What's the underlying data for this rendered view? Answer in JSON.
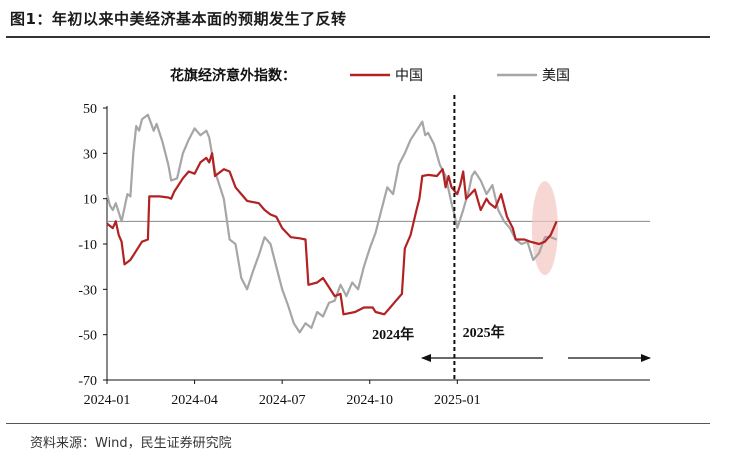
{
  "title": "图1：年初以来中美经济基本面的预期发生了反转",
  "source": "资料来源：Wind，民生证券研究院",
  "chart_data": {
    "type": "line",
    "legend_title": "花旗经济意外指数：",
    "legend_position": "top-center",
    "ylim": [
      -70,
      50
    ],
    "yticks": [
      50,
      30,
      10,
      -10,
      -30,
      -50,
      -70
    ],
    "ytick_labels": [
      "50",
      "30",
      "10",
      "-10",
      "-30",
      "-50",
      "-70"
    ],
    "xticks": [
      "2024-01",
      "2024-04",
      "2024-07",
      "2024-10",
      "2025-01"
    ],
    "x_domain": [
      0,
      18.6
    ],
    "xtick_positions": [
      0,
      3,
      6,
      9,
      12
    ],
    "divider_x": 11.9,
    "zero_line": 0,
    "annotations": [
      {
        "text": "2024年",
        "x": 9.8,
        "y": -52
      },
      {
        "text": "2025年",
        "x": 12.9,
        "y": -51
      }
    ],
    "series": [
      {
        "name": "中国",
        "color": "#b22222",
        "points": [
          [
            0.0,
            -1
          ],
          [
            0.2,
            -3
          ],
          [
            0.3,
            0
          ],
          [
            0.4,
            -6
          ],
          [
            0.5,
            -9
          ],
          [
            0.6,
            -19
          ],
          [
            0.8,
            -17
          ],
          [
            1.0,
            -13
          ],
          [
            1.2,
            -9
          ],
          [
            1.4,
            -8
          ],
          [
            1.45,
            11
          ],
          [
            1.8,
            11
          ],
          [
            2.1,
            10.5
          ],
          [
            2.2,
            10
          ],
          [
            2.3,
            13
          ],
          [
            2.6,
            19
          ],
          [
            2.8,
            22
          ],
          [
            3.0,
            21
          ],
          [
            3.2,
            26
          ],
          [
            3.4,
            28
          ],
          [
            3.5,
            26
          ],
          [
            3.6,
            30
          ],
          [
            3.7,
            20
          ],
          [
            4.0,
            23
          ],
          [
            4.2,
            22
          ],
          [
            4.4,
            15
          ],
          [
            4.6,
            12
          ],
          [
            4.8,
            9
          ],
          [
            5.2,
            8
          ],
          [
            5.4,
            5
          ],
          [
            5.6,
            3
          ],
          [
            5.8,
            2
          ],
          [
            6.0,
            -3
          ],
          [
            6.3,
            -7
          ],
          [
            6.6,
            -7.5
          ],
          [
            6.8,
            -8
          ],
          [
            6.9,
            -28
          ],
          [
            7.2,
            -27
          ],
          [
            7.4,
            -25
          ],
          [
            7.6,
            -29
          ],
          [
            7.8,
            -33
          ],
          [
            8.0,
            -32
          ],
          [
            8.1,
            -41
          ],
          [
            8.5,
            -40
          ],
          [
            8.8,
            -38
          ],
          [
            9.1,
            -38
          ],
          [
            9.2,
            -40
          ],
          [
            9.5,
            -41
          ],
          [
            9.7,
            -38
          ],
          [
            9.9,
            -35
          ],
          [
            10.1,
            -32
          ],
          [
            10.2,
            -12
          ],
          [
            10.4,
            -6
          ],
          [
            10.6,
            5
          ],
          [
            10.7,
            10
          ],
          [
            10.8,
            20
          ],
          [
            11.0,
            20.5
          ],
          [
            11.3,
            20
          ],
          [
            11.5,
            23
          ],
          [
            11.6,
            15
          ],
          [
            11.7,
            20
          ],
          [
            11.8,
            15
          ],
          [
            12.0,
            12
          ],
          [
            12.1,
            16
          ],
          [
            12.2,
            22
          ],
          [
            12.3,
            10
          ],
          [
            12.6,
            14
          ],
          [
            12.8,
            5
          ],
          [
            13.0,
            10
          ],
          [
            13.1,
            8
          ],
          [
            13.3,
            6
          ],
          [
            13.5,
            12
          ],
          [
            13.7,
            2
          ],
          [
            13.9,
            -3
          ],
          [
            14.0,
            -8
          ],
          [
            14.3,
            -8
          ],
          [
            14.5,
            -9
          ],
          [
            14.8,
            -10
          ],
          [
            15.0,
            -9
          ],
          [
            15.2,
            -6
          ],
          [
            15.4,
            0
          ]
        ]
      },
      {
        "name": "美国",
        "color": "#a6a6a6",
        "points": [
          [
            0.0,
            12
          ],
          [
            0.1,
            7
          ],
          [
            0.2,
            5
          ],
          [
            0.3,
            8
          ],
          [
            0.4,
            4
          ],
          [
            0.5,
            0
          ],
          [
            0.6,
            6
          ],
          [
            0.7,
            12
          ],
          [
            0.8,
            11
          ],
          [
            0.9,
            30
          ],
          [
            1.0,
            42
          ],
          [
            1.1,
            40
          ],
          [
            1.2,
            45
          ],
          [
            1.4,
            47
          ],
          [
            1.6,
            40
          ],
          [
            1.7,
            43
          ],
          [
            1.9,
            35
          ],
          [
            2.1,
            25
          ],
          [
            2.2,
            18
          ],
          [
            2.4,
            19
          ],
          [
            2.6,
            30
          ],
          [
            2.8,
            36
          ],
          [
            3.0,
            41
          ],
          [
            3.2,
            38
          ],
          [
            3.4,
            40
          ],
          [
            3.5,
            37
          ],
          [
            3.7,
            22
          ],
          [
            3.8,
            18
          ],
          [
            4.0,
            10
          ],
          [
            4.2,
            -8
          ],
          [
            4.4,
            -10
          ],
          [
            4.6,
            -25
          ],
          [
            4.8,
            -30
          ],
          [
            5.0,
            -22
          ],
          [
            5.2,
            -15
          ],
          [
            5.4,
            -7
          ],
          [
            5.6,
            -10
          ],
          [
            5.8,
            -20
          ],
          [
            6.0,
            -30
          ],
          [
            6.2,
            -37
          ],
          [
            6.4,
            -45
          ],
          [
            6.6,
            -49
          ],
          [
            6.8,
            -45
          ],
          [
            7.0,
            -47
          ],
          [
            7.2,
            -40
          ],
          [
            7.4,
            -42
          ],
          [
            7.6,
            -36
          ],
          [
            7.8,
            -35
          ],
          [
            8.0,
            -28
          ],
          [
            8.2,
            -33
          ],
          [
            8.4,
            -27
          ],
          [
            8.6,
            -30
          ],
          [
            8.8,
            -20
          ],
          [
            9.0,
            -12
          ],
          [
            9.2,
            -5
          ],
          [
            9.4,
            5
          ],
          [
            9.6,
            15
          ],
          [
            9.8,
            12
          ],
          [
            10.0,
            25
          ],
          [
            10.2,
            30
          ],
          [
            10.4,
            36
          ],
          [
            10.6,
            40
          ],
          [
            10.8,
            44
          ],
          [
            10.9,
            38
          ],
          [
            11.0,
            39
          ],
          [
            11.2,
            34
          ],
          [
            11.4,
            25
          ],
          [
            11.6,
            20
          ],
          [
            11.8,
            8
          ],
          [
            11.9,
            3
          ],
          [
            12.0,
            -3
          ],
          [
            12.2,
            5
          ],
          [
            12.4,
            14
          ],
          [
            12.5,
            20
          ],
          [
            12.6,
            22
          ],
          [
            12.8,
            18
          ],
          [
            13.0,
            12
          ],
          [
            13.2,
            16
          ],
          [
            13.4,
            5
          ],
          [
            13.6,
            0
          ],
          [
            13.8,
            -3
          ],
          [
            14.0,
            -8
          ],
          [
            14.2,
            -10
          ],
          [
            14.4,
            -9
          ],
          [
            14.6,
            -17
          ],
          [
            14.8,
            -14
          ],
          [
            15.0,
            -7
          ],
          [
            15.2,
            -7
          ],
          [
            15.4,
            -8
          ]
        ]
      }
    ],
    "highlight_ellipse": {
      "x": 15.0,
      "y": -3,
      "color": "#f4c6c2"
    }
  }
}
